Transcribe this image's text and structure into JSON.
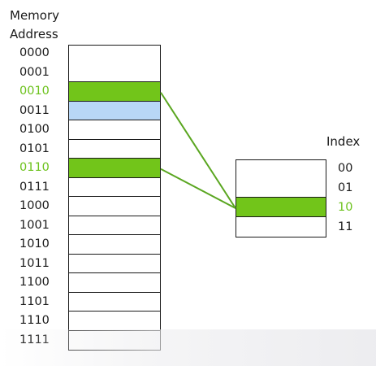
{
  "memory": {
    "title_line1": "Memory",
    "title_line2": "Address",
    "addresses": [
      {
        "label": "0000",
        "color": "#1a1a1a",
        "fill": "#ffffff"
      },
      {
        "label": "0001",
        "color": "#1a1a1a",
        "fill": "#ffffff"
      },
      {
        "label": "0010",
        "color": "#6cc21c",
        "fill": "#72c51a"
      },
      {
        "label": "0011",
        "color": "#1a1a1a",
        "fill": "#b8d7f6"
      },
      {
        "label": "0100",
        "color": "#1a1a1a",
        "fill": "#ffffff"
      },
      {
        "label": "0101",
        "color": "#1a1a1a",
        "fill": "#ffffff"
      },
      {
        "label": "0110",
        "color": "#6cc21c",
        "fill": "#72c51a"
      },
      {
        "label": "0111",
        "color": "#1a1a1a",
        "fill": "#ffffff"
      },
      {
        "label": "1000",
        "color": "#1a1a1a",
        "fill": "#ffffff"
      },
      {
        "label": "1001",
        "color": "#1a1a1a",
        "fill": "#ffffff"
      },
      {
        "label": "1010",
        "color": "#1a1a1a",
        "fill": "#ffffff"
      },
      {
        "label": "1011",
        "color": "#1a1a1a",
        "fill": "#ffffff"
      },
      {
        "label": "1100",
        "color": "#1a1a1a",
        "fill": "#ffffff"
      },
      {
        "label": "1101",
        "color": "#1a1a1a",
        "fill": "#ffffff"
      },
      {
        "label": "1110",
        "color": "#1a1a1a",
        "fill": "#ffffff"
      },
      {
        "label": "1111",
        "color": "#1a1a1a",
        "fill": "#ffffff"
      }
    ]
  },
  "cache": {
    "title": "Index",
    "indices": [
      {
        "label": "00",
        "color": "#1a1a1a",
        "fill": "#ffffff"
      },
      {
        "label": "01",
        "color": "#1a1a1a",
        "fill": "#ffffff"
      },
      {
        "label": "10",
        "color": "#6cc21c",
        "fill": "#72c51a"
      },
      {
        "label": "11",
        "color": "#1a1a1a",
        "fill": "#ffffff"
      }
    ]
  },
  "links": [
    {
      "from_address": "0010",
      "to_index": "10"
    },
    {
      "from_address": "0110",
      "to_index": "10"
    }
  ],
  "colors": {
    "line": "#1a1a1a",
    "mapping_line": "#5aa620"
  }
}
